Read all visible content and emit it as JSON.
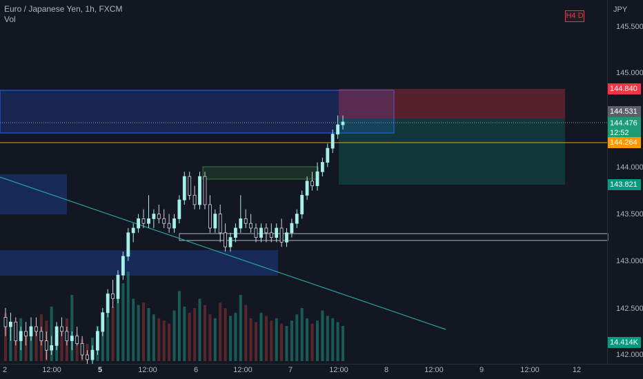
{
  "header": {
    "title": "Euro / Japanese Yen, 1h, FXCM",
    "volume_label": "Vol"
  },
  "timeframe_badge": "H4 D",
  "price_axis": {
    "unit": "JPY",
    "ticks": [
      "145.500",
      "145.000",
      "144.000",
      "143.500",
      "143.000",
      "142.500",
      "142.000"
    ]
  },
  "price_tags": {
    "stop_loss": "144.840",
    "entry": "144.531",
    "current_price": "144.476",
    "countdown": "12:52",
    "horizontal_line": "144.264",
    "take_profit": "143.821",
    "volume_value": "14.414K"
  },
  "time_axis": {
    "labels": [
      {
        "text": "2",
        "bold": false
      },
      {
        "text": "12:00",
        "bold": false
      },
      {
        "text": "5",
        "bold": true
      },
      {
        "text": "12:00",
        "bold": false
      },
      {
        "text": "6",
        "bold": false
      },
      {
        "text": "12:00",
        "bold": false
      },
      {
        "text": "7",
        "bold": false
      },
      {
        "text": "12:00",
        "bold": false
      },
      {
        "text": "8",
        "bold": false
      },
      {
        "text": "12:00",
        "bold": false
      },
      {
        "text": "9",
        "bold": false
      },
      {
        "text": "12:00",
        "bold": false
      },
      {
        "text": "12",
        "bold": false
      }
    ]
  },
  "colors": {
    "background": "#131722",
    "bull": "#a5f1e9",
    "bear": "#1b4a4a",
    "stop_loss_zone": "#f23645",
    "take_profit_zone": "#089981",
    "supply_zone": "#2962ff",
    "trend_line": "#26a69a",
    "horizontal_line": "#ff9800"
  },
  "chart_data": {
    "type": "candlestick",
    "symbol": "EURJPY",
    "ylim": [
      141.95,
      145.65
    ],
    "candles": [
      [
        142.4,
        142.5,
        142.2,
        142.3
      ],
      [
        142.3,
        142.45,
        142.15,
        142.35
      ],
      [
        142.35,
        142.4,
        142.1,
        142.15
      ],
      [
        142.15,
        142.3,
        142.05,
        142.25
      ],
      [
        142.25,
        142.35,
        142.1,
        142.2
      ],
      [
        142.2,
        142.4,
        142.15,
        142.3
      ],
      [
        142.3,
        142.4,
        142.2,
        142.25
      ],
      [
        142.25,
        142.3,
        142.1,
        142.15
      ],
      [
        142.15,
        142.25,
        141.95,
        142.05
      ],
      [
        142.05,
        142.2,
        142.0,
        142.1
      ],
      [
        142.1,
        142.35,
        142.05,
        142.3
      ],
      [
        142.3,
        142.4,
        142.2,
        142.25
      ],
      [
        142.25,
        142.3,
        142.1,
        142.15
      ],
      [
        142.15,
        142.25,
        142.05,
        142.2
      ],
      [
        142.2,
        142.3,
        142.1,
        142.12
      ],
      [
        142.12,
        142.2,
        141.95,
        142.0
      ],
      [
        142.0,
        142.05,
        141.9,
        141.95
      ],
      [
        141.95,
        142.1,
        141.9,
        142.05
      ],
      [
        142.05,
        142.3,
        142.0,
        142.25
      ],
      [
        142.25,
        142.5,
        142.2,
        142.45
      ],
      [
        142.45,
        142.7,
        142.4,
        142.65
      ],
      [
        142.65,
        142.8,
        142.5,
        142.6
      ],
      [
        142.6,
        142.9,
        142.55,
        142.85
      ],
      [
        142.85,
        143.1,
        142.8,
        143.05
      ],
      [
        143.05,
        143.35,
        143.0,
        143.3
      ],
      [
        143.3,
        143.4,
        143.2,
        143.35
      ],
      [
        143.35,
        143.5,
        143.3,
        143.45
      ],
      [
        143.45,
        143.55,
        143.35,
        143.4
      ],
      [
        143.4,
        143.7,
        143.35,
        143.45
      ],
      [
        143.45,
        143.55,
        143.35,
        143.5
      ],
      [
        143.5,
        143.6,
        143.4,
        143.45
      ],
      [
        143.45,
        143.55,
        143.35,
        143.4
      ],
      [
        143.4,
        143.5,
        143.3,
        143.35
      ],
      [
        143.35,
        143.5,
        143.3,
        143.45
      ],
      [
        143.45,
        143.7,
        143.4,
        143.65
      ],
      [
        143.65,
        143.95,
        143.6,
        143.9
      ],
      [
        143.9,
        143.95,
        143.65,
        143.7
      ],
      [
        143.7,
        143.8,
        143.55,
        143.6
      ],
      [
        143.6,
        143.95,
        143.55,
        143.9
      ],
      [
        143.9,
        143.95,
        143.55,
        143.6
      ],
      [
        143.6,
        143.7,
        143.3,
        143.35
      ],
      [
        143.35,
        143.55,
        143.3,
        143.5
      ],
      [
        143.5,
        143.6,
        143.2,
        143.3
      ],
      [
        143.3,
        143.4,
        143.1,
        143.15
      ],
      [
        143.15,
        143.3,
        143.1,
        143.25
      ],
      [
        143.25,
        143.4,
        143.2,
        143.35
      ],
      [
        143.35,
        143.7,
        143.3,
        143.45
      ],
      [
        143.45,
        143.55,
        143.35,
        143.4
      ],
      [
        143.4,
        143.5,
        143.3,
        143.35
      ],
      [
        143.35,
        143.4,
        143.2,
        143.25
      ],
      [
        143.25,
        143.4,
        143.2,
        143.35
      ],
      [
        143.35,
        143.4,
        143.2,
        143.3
      ],
      [
        143.3,
        143.4,
        143.2,
        143.25
      ],
      [
        143.25,
        143.4,
        143.2,
        143.35
      ],
      [
        143.35,
        143.45,
        143.15,
        143.2
      ],
      [
        143.2,
        143.35,
        143.15,
        143.3
      ],
      [
        143.3,
        143.45,
        143.25,
        143.4
      ],
      [
        143.4,
        143.55,
        143.35,
        143.5
      ],
      [
        143.5,
        143.75,
        143.45,
        143.7
      ],
      [
        143.7,
        143.9,
        143.65,
        143.85
      ],
      [
        143.85,
        143.95,
        143.75,
        143.8
      ],
      [
        143.8,
        144.05,
        143.75,
        143.95
      ],
      [
        143.95,
        144.1,
        143.9,
        144.05
      ],
      [
        144.05,
        144.25,
        144.0,
        144.2
      ],
      [
        144.2,
        144.4,
        144.15,
        144.35
      ],
      [
        144.35,
        144.55,
        144.3,
        144.45
      ],
      [
        144.45,
        144.55,
        144.4,
        144.48
      ]
    ],
    "volumes": [
      62,
      48,
      40,
      55,
      38,
      45,
      42,
      60,
      52,
      70,
      44,
      40,
      55,
      85,
      35,
      28,
      22,
      30,
      45,
      60,
      75,
      70,
      88,
      100,
      115,
      80,
      72,
      75,
      68,
      60,
      55,
      52,
      48,
      65,
      90,
      70,
      62,
      68,
      80,
      72,
      60,
      55,
      75,
      68,
      58,
      62,
      85,
      72,
      55,
      50,
      62,
      58,
      52,
      55,
      48,
      45,
      52,
      60,
      68,
      55,
      48,
      52,
      65,
      58,
      55,
      50,
      45
    ]
  }
}
